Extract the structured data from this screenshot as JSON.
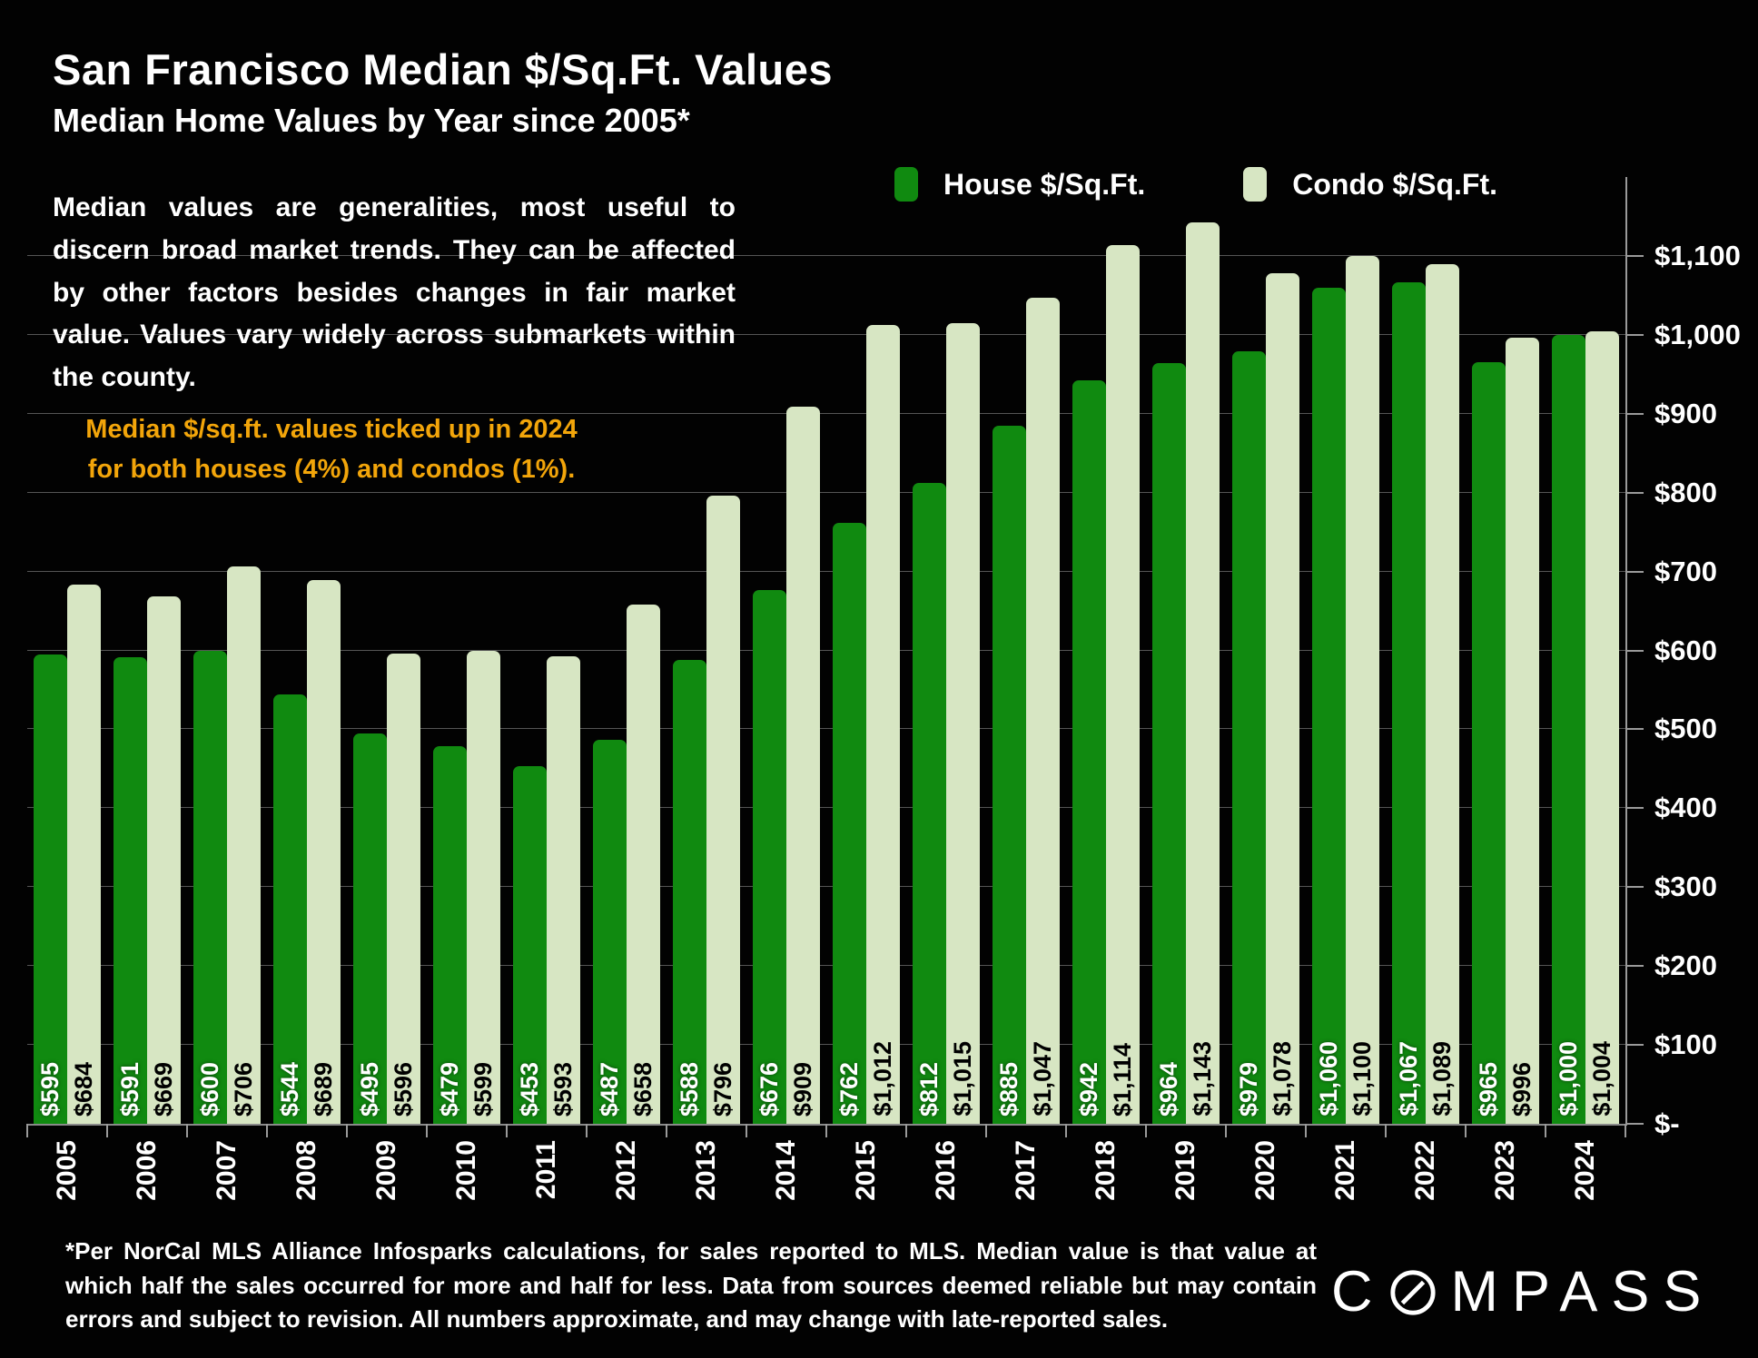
{
  "header": {
    "title": "San Francisco Median $/Sq.Ft. Values",
    "subtitle": "Median Home Values by Year since 2005*"
  },
  "commentary": {
    "paragraph": "Median values are generalities, most useful to discern broad market trends. They can be affected by other factors besides changes in fair market value. Values vary widely across submarkets within the county.",
    "highlight_line1": "Median $/sq.ft. values ticked up in 2024",
    "highlight_line2": "for both houses (4%) and condos (1%).",
    "highlight_color": "#F2A50A"
  },
  "footnote": "*Per NorCal MLS Alliance Infosparks calculations, for sales reported to MLS. Median value is that value at which half the sales occurred for more and half for less. Data from sources deemed reliable but may contain errors and subject to revision. All numbers approximate, and may change with late-reported sales.",
  "logo": {
    "name": "COMPASS",
    "part1": "C",
    "part2": "MPASS"
  },
  "colors": {
    "background": "#020202",
    "house_green": "#108A10",
    "condo_green": "#D7E6C3",
    "gridline": "#555555",
    "axis": "#9A9A9A",
    "text": "#FFFFFF"
  },
  "chart_data": {
    "type": "bar",
    "title": "San Francisco Median $/Sq.Ft. Values",
    "subtitle": "Median Home Values by Year since 2005*",
    "categories": [
      "2005",
      "2006",
      "2007",
      "2008",
      "2009",
      "2010",
      "2011",
      "2012",
      "2013",
      "2014",
      "2015",
      "2016",
      "2017",
      "2018",
      "2019",
      "2020",
      "2021",
      "2022",
      "2023",
      "2024"
    ],
    "series": [
      {
        "name": "House $/Sq.Ft.",
        "color": "#108A10",
        "values": [
          595,
          591,
          600,
          544,
          495,
          479,
          453,
          487,
          588,
          676,
          762,
          812,
          885,
          942,
          964,
          979,
          1060,
          1067,
          965,
          1000
        ],
        "labels": [
          "$595",
          "$591",
          "$600",
          "$544",
          "$495",
          "$479",
          "$453",
          "$487",
          "$588",
          "$676",
          "$762",
          "$812",
          "$885",
          "$942",
          "$964",
          "$979",
          "$1,060",
          "$1,067",
          "$965",
          "$1,000"
        ]
      },
      {
        "name": "Condo $/Sq.Ft.",
        "color": "#D7E6C3",
        "values": [
          684,
          669,
          706,
          689,
          596,
          599,
          593,
          658,
          796,
          909,
          1012,
          1015,
          1047,
          1114,
          1143,
          1078,
          1100,
          1089,
          996,
          1004
        ],
        "labels": [
          "$684",
          "$669",
          "$706",
          "$689",
          "$596",
          "$599",
          "$593",
          "$658",
          "$796",
          "$909",
          "$1,012",
          "$1,015",
          "$1,047",
          "$1,114",
          "$1,143",
          "$1,078",
          "$1,100",
          "$1,089",
          "$996",
          "$1,004"
        ]
      }
    ],
    "y_tick_labels": [
      "$-",
      "$100",
      "$200",
      "$300",
      "$400",
      "$500",
      "$600",
      "$700",
      "$800",
      "$900",
      "$1,000",
      "$1,100"
    ],
    "y_tick_step": 100,
    "ylim": [
      0,
      1200
    ],
    "xlabel": "",
    "ylabel": "",
    "grid": true,
    "axis_side": "right",
    "legend_position": "top"
  }
}
